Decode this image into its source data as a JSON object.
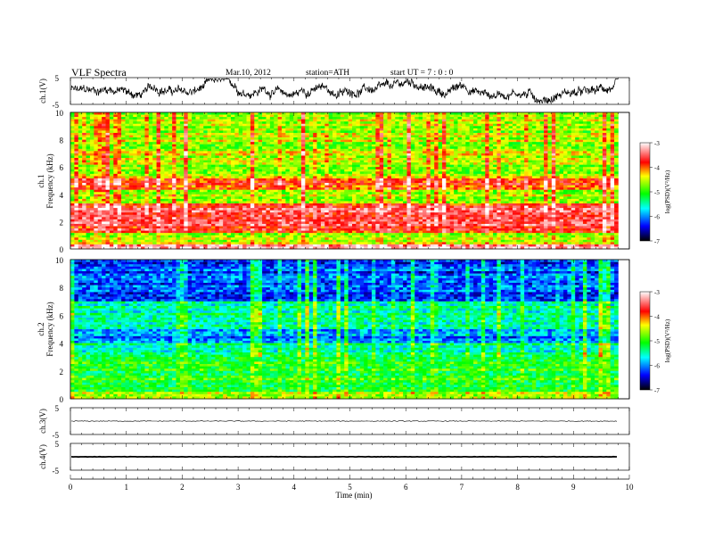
{
  "header": {
    "title": "VLF  Spectra",
    "date": "Mar.10, 2012",
    "station": "station=ATH",
    "start": "start  UT  =    7  : 0  : 0"
  },
  "chart_data": [
    {
      "type": "line",
      "ylabel": "ch.1(V)",
      "yticks": [
        "5",
        "-5"
      ],
      "ylim": [
        -5,
        5
      ],
      "xlim": [
        0,
        10
      ],
      "data_end": 9.8,
      "trace": "noisy waveform, roughly between -4 and 4 V"
    },
    {
      "type": "heatmap",
      "ylabel_channel": "ch.1",
      "ylabel": "Frequency  (kHz)",
      "yticks": [
        "10",
        "8",
        "6",
        "4",
        "2",
        "0"
      ],
      "ylim": [
        0,
        10
      ],
      "xlim": [
        0,
        10
      ],
      "data_end": 9.8,
      "colorbar": {
        "label": "log(PSD)(V²/Hz)",
        "ticks": [
          "-3",
          "-4",
          "-5",
          "-6",
          "-7"
        ],
        "range": [
          -7,
          -3
        ]
      },
      "dominant_level": -4.6,
      "colors": [
        "#000000",
        "#0000ff",
        "#00ffff",
        "#00ff00",
        "#ffff00",
        "#ff0000",
        "#ffffff"
      ]
    },
    {
      "type": "heatmap",
      "ylabel_channel": "ch.2",
      "ylabel": "Frequency  (kHz)",
      "yticks": [
        "10",
        "8",
        "6",
        "4",
        "2",
        "0"
      ],
      "ylim": [
        0,
        10
      ],
      "xlim": [
        0,
        10
      ],
      "data_end": 9.8,
      "colorbar": {
        "label": "log(PSD)(V²/Hz)",
        "ticks": [
          "-3",
          "-4",
          "-5",
          "-6",
          "-7"
        ],
        "range": [
          -7,
          -3
        ]
      },
      "dominant_level": -5.5
    },
    {
      "type": "line",
      "ylabel": "ch.3(V)",
      "yticks": [
        "5",
        "-5"
      ],
      "ylim": [
        -5,
        5
      ],
      "xlim": [
        0,
        10
      ],
      "data_end": 9.8,
      "trace": "flat line near 0 V"
    },
    {
      "type": "line",
      "ylabel": "ch.4(V)",
      "yticks": [
        "5",
        "-5"
      ],
      "ylim": [
        -5,
        5
      ],
      "xlim": [
        0,
        10
      ],
      "data_end": 9.8,
      "trace": "thick flat line near 0 V"
    }
  ],
  "xaxis": {
    "label": "Time  (min)",
    "ticks": [
      "0",
      "1",
      "2",
      "3",
      "4",
      "5",
      "6",
      "7",
      "8",
      "9",
      "10"
    ]
  }
}
